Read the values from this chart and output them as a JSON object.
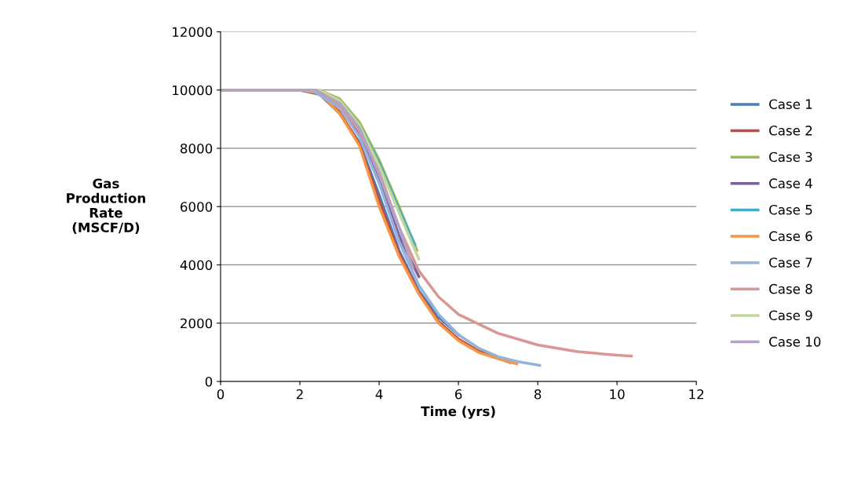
{
  "chart_data": {
    "type": "line",
    "xlabel": "Time (yrs)",
    "ylabel": "Gas\nProduction\nRate\n(MSCF/D)",
    "xlim": [
      0,
      12
    ],
    "xticks": [
      0,
      2,
      4,
      6,
      8,
      10,
      12
    ],
    "ylim": [
      0,
      12000
    ],
    "yticks": [
      0,
      2000,
      4000,
      6000,
      8000,
      10000,
      12000
    ],
    "grid": "y",
    "legend": "right",
    "marker": "none",
    "line_style": "solid",
    "series": [
      {
        "name": "Case 1",
        "color": "#4a7ebb",
        "x": [
          0,
          2,
          2.5,
          3,
          3.5,
          4,
          4.5,
          5,
          5.5,
          6
        ],
        "values": [
          10000,
          10000,
          9850,
          9200,
          8200,
          6400,
          4500,
          3100,
          2200,
          1600
        ]
      },
      {
        "name": "Case 2",
        "color": "#be4b48",
        "x": [
          0,
          2,
          2.5,
          3,
          3.5,
          4,
          4.5,
          5,
          5.5,
          6,
          6.5,
          7,
          7.3
        ],
        "values": [
          10000,
          10000,
          9880,
          9250,
          8150,
          6200,
          4400,
          3050,
          2050,
          1450,
          1050,
          800,
          650
        ]
      },
      {
        "name": "Case 3",
        "color": "#98b954",
        "x": [
          0,
          2.5,
          3,
          3.5,
          4,
          4.5,
          4.95
        ],
        "values": [
          10000,
          10000,
          9700,
          8900,
          7600,
          6000,
          4500
        ]
      },
      {
        "name": "Case 4",
        "color": "#7d60a0",
        "x": [
          0,
          2.3,
          3,
          3.5,
          4,
          4.5,
          5
        ],
        "values": [
          10000,
          10000,
          9450,
          8500,
          6900,
          5000,
          3600
        ]
      },
      {
        "name": "Case 5",
        "color": "#46aac5",
        "x": [
          3,
          3.5,
          4,
          4.5,
          4.9
        ],
        "values": [
          9650,
          8800,
          7500,
          5900,
          4700
        ]
      },
      {
        "name": "Case 6",
        "color": "#f79646",
        "x": [
          0,
          2,
          2.5,
          3,
          3.5,
          4,
          4.5,
          5,
          5.5,
          6,
          6.5,
          7,
          7.47
        ],
        "values": [
          10000,
          10000,
          9900,
          9200,
          8100,
          6000,
          4300,
          3000,
          2000,
          1400,
          1000,
          780,
          600
        ]
      },
      {
        "name": "Case 7",
        "color": "#95b3d7",
        "x": [
          0,
          2.3,
          3,
          3.5,
          4,
          4.5,
          5,
          5.5,
          6,
          6.5,
          7,
          7.5,
          8.05
        ],
        "values": [
          10000,
          10000,
          9400,
          8400,
          6800,
          4800,
          3300,
          2300,
          1600,
          1150,
          850,
          680,
          550
        ]
      },
      {
        "name": "Case 8",
        "color": "#d99694",
        "x": [
          0,
          2.4,
          3,
          3.5,
          4,
          4.5,
          5,
          5.5,
          6,
          7,
          8,
          9,
          10,
          10.36
        ],
        "values": [
          10000,
          10000,
          9500,
          8600,
          7200,
          5300,
          3800,
          2900,
          2300,
          1650,
          1250,
          1020,
          900,
          870
        ]
      },
      {
        "name": "Case 9",
        "color": "#c3d69b",
        "x": [
          0,
          2.5,
          3,
          3.5,
          4,
          4.5,
          5
        ],
        "values": [
          10000,
          10000,
          9650,
          8800,
          7400,
          5800,
          4200
        ]
      },
      {
        "name": "Case 10",
        "color": "#b3a2c7",
        "x": [
          0,
          2.4,
          3,
          3.5,
          4,
          4.5,
          4.85
        ],
        "values": [
          10000,
          10000,
          9550,
          8700,
          7100,
          5300,
          3900
        ]
      }
    ]
  }
}
